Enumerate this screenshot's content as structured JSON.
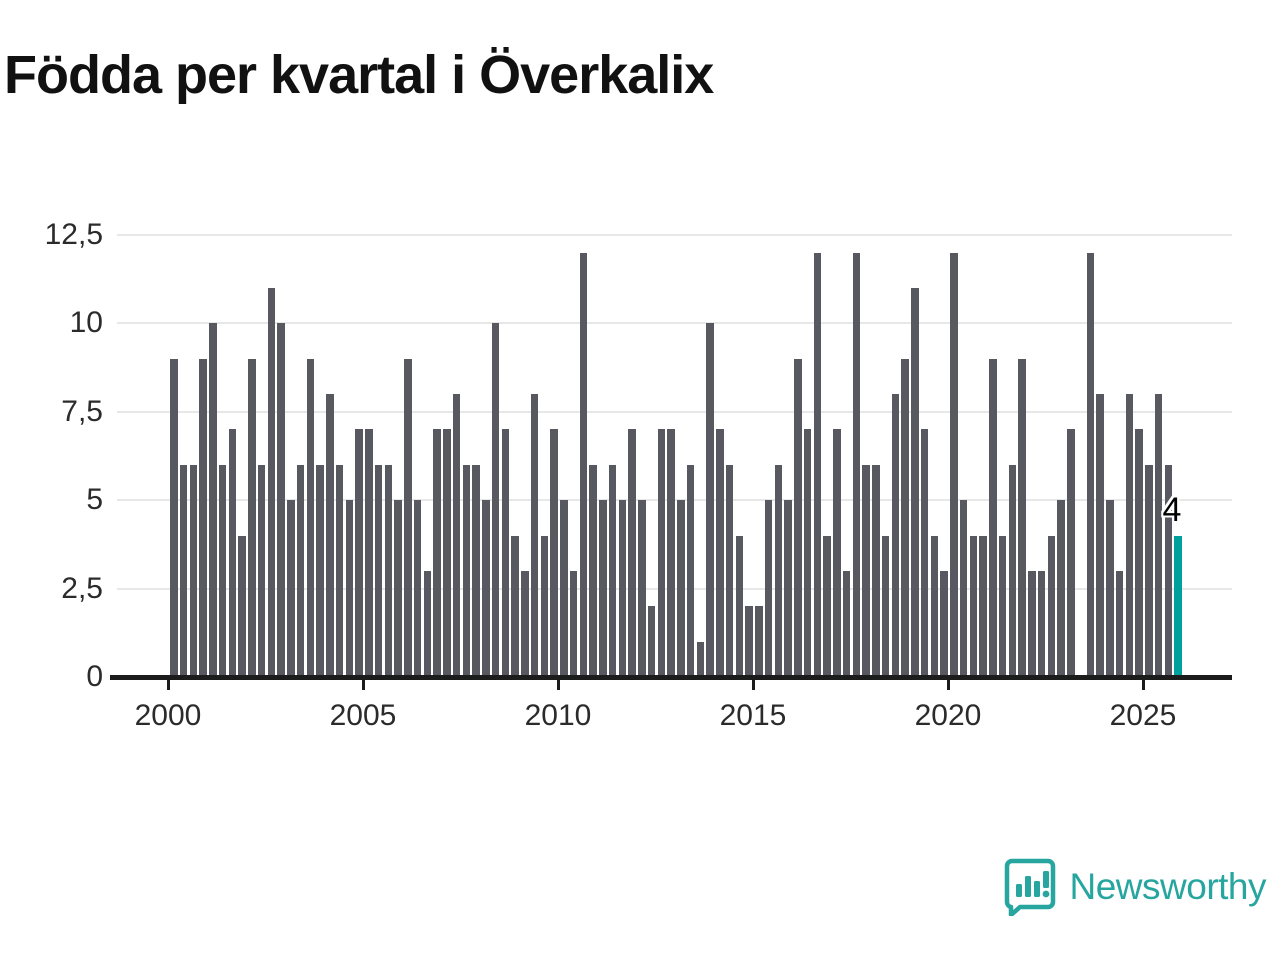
{
  "title": "Födda per kvartal i Överkalix",
  "chart_data": {
    "type": "bar",
    "title": "Födda per kvartal i Överkalix",
    "x_start_year": 2000,
    "x_start_quarter": 1,
    "values": [
      9,
      6,
      6,
      9,
      10,
      6,
      7,
      4,
      9,
      6,
      11,
      10,
      5,
      6,
      9,
      6,
      8,
      6,
      5,
      7,
      7,
      6,
      6,
      5,
      9,
      5,
      3,
      7,
      7,
      8,
      6,
      6,
      5,
      10,
      7,
      4,
      3,
      8,
      4,
      7,
      5,
      3,
      12,
      6,
      5,
      6,
      5,
      7,
      5,
      2,
      7,
      7,
      5,
      6,
      1,
      10,
      7,
      6,
      4,
      2,
      2,
      5,
      6,
      5,
      9,
      7,
      12,
      4,
      7,
      3,
      12,
      6,
      6,
      4,
      8,
      9,
      11,
      7,
      4,
      3,
      12,
      5,
      4,
      4,
      9,
      4,
      6,
      9,
      3,
      3,
      4,
      5,
      7,
      0,
      12,
      8,
      5,
      3,
      8,
      7,
      6,
      8,
      6,
      4
    ],
    "year_ticks": [
      2000,
      2005,
      2010,
      2015,
      2020,
      2025
    ],
    "x_tick_labels": [
      "2000",
      "2005",
      "2010",
      "2015",
      "2020",
      "2025"
    ],
    "y_ticks": [
      0,
      2.5,
      5,
      7.5,
      10,
      12.5
    ],
    "y_tick_labels": [
      "0",
      "2,5",
      "5",
      "7,5",
      "10",
      "12,5"
    ],
    "ylim": [
      0,
      12.5
    ],
    "grid": "horizontal",
    "legend": "none",
    "bar_color": "#575860",
    "highlight_color": "#00a19c",
    "highlight_last_bar": true,
    "last_value_label": "4"
  },
  "branding": {
    "logo_text": "Newsworthy",
    "logo_color": "#27a59f"
  }
}
